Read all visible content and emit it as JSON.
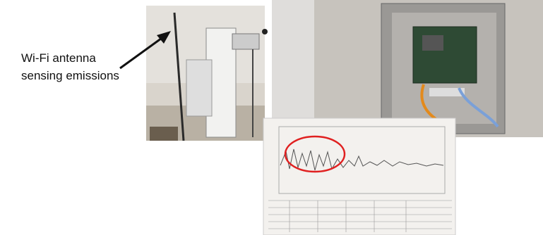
{
  "annotation": {
    "lines": [
      "Wi-Fi antenna",
      "sensing emissions"
    ]
  }
}
